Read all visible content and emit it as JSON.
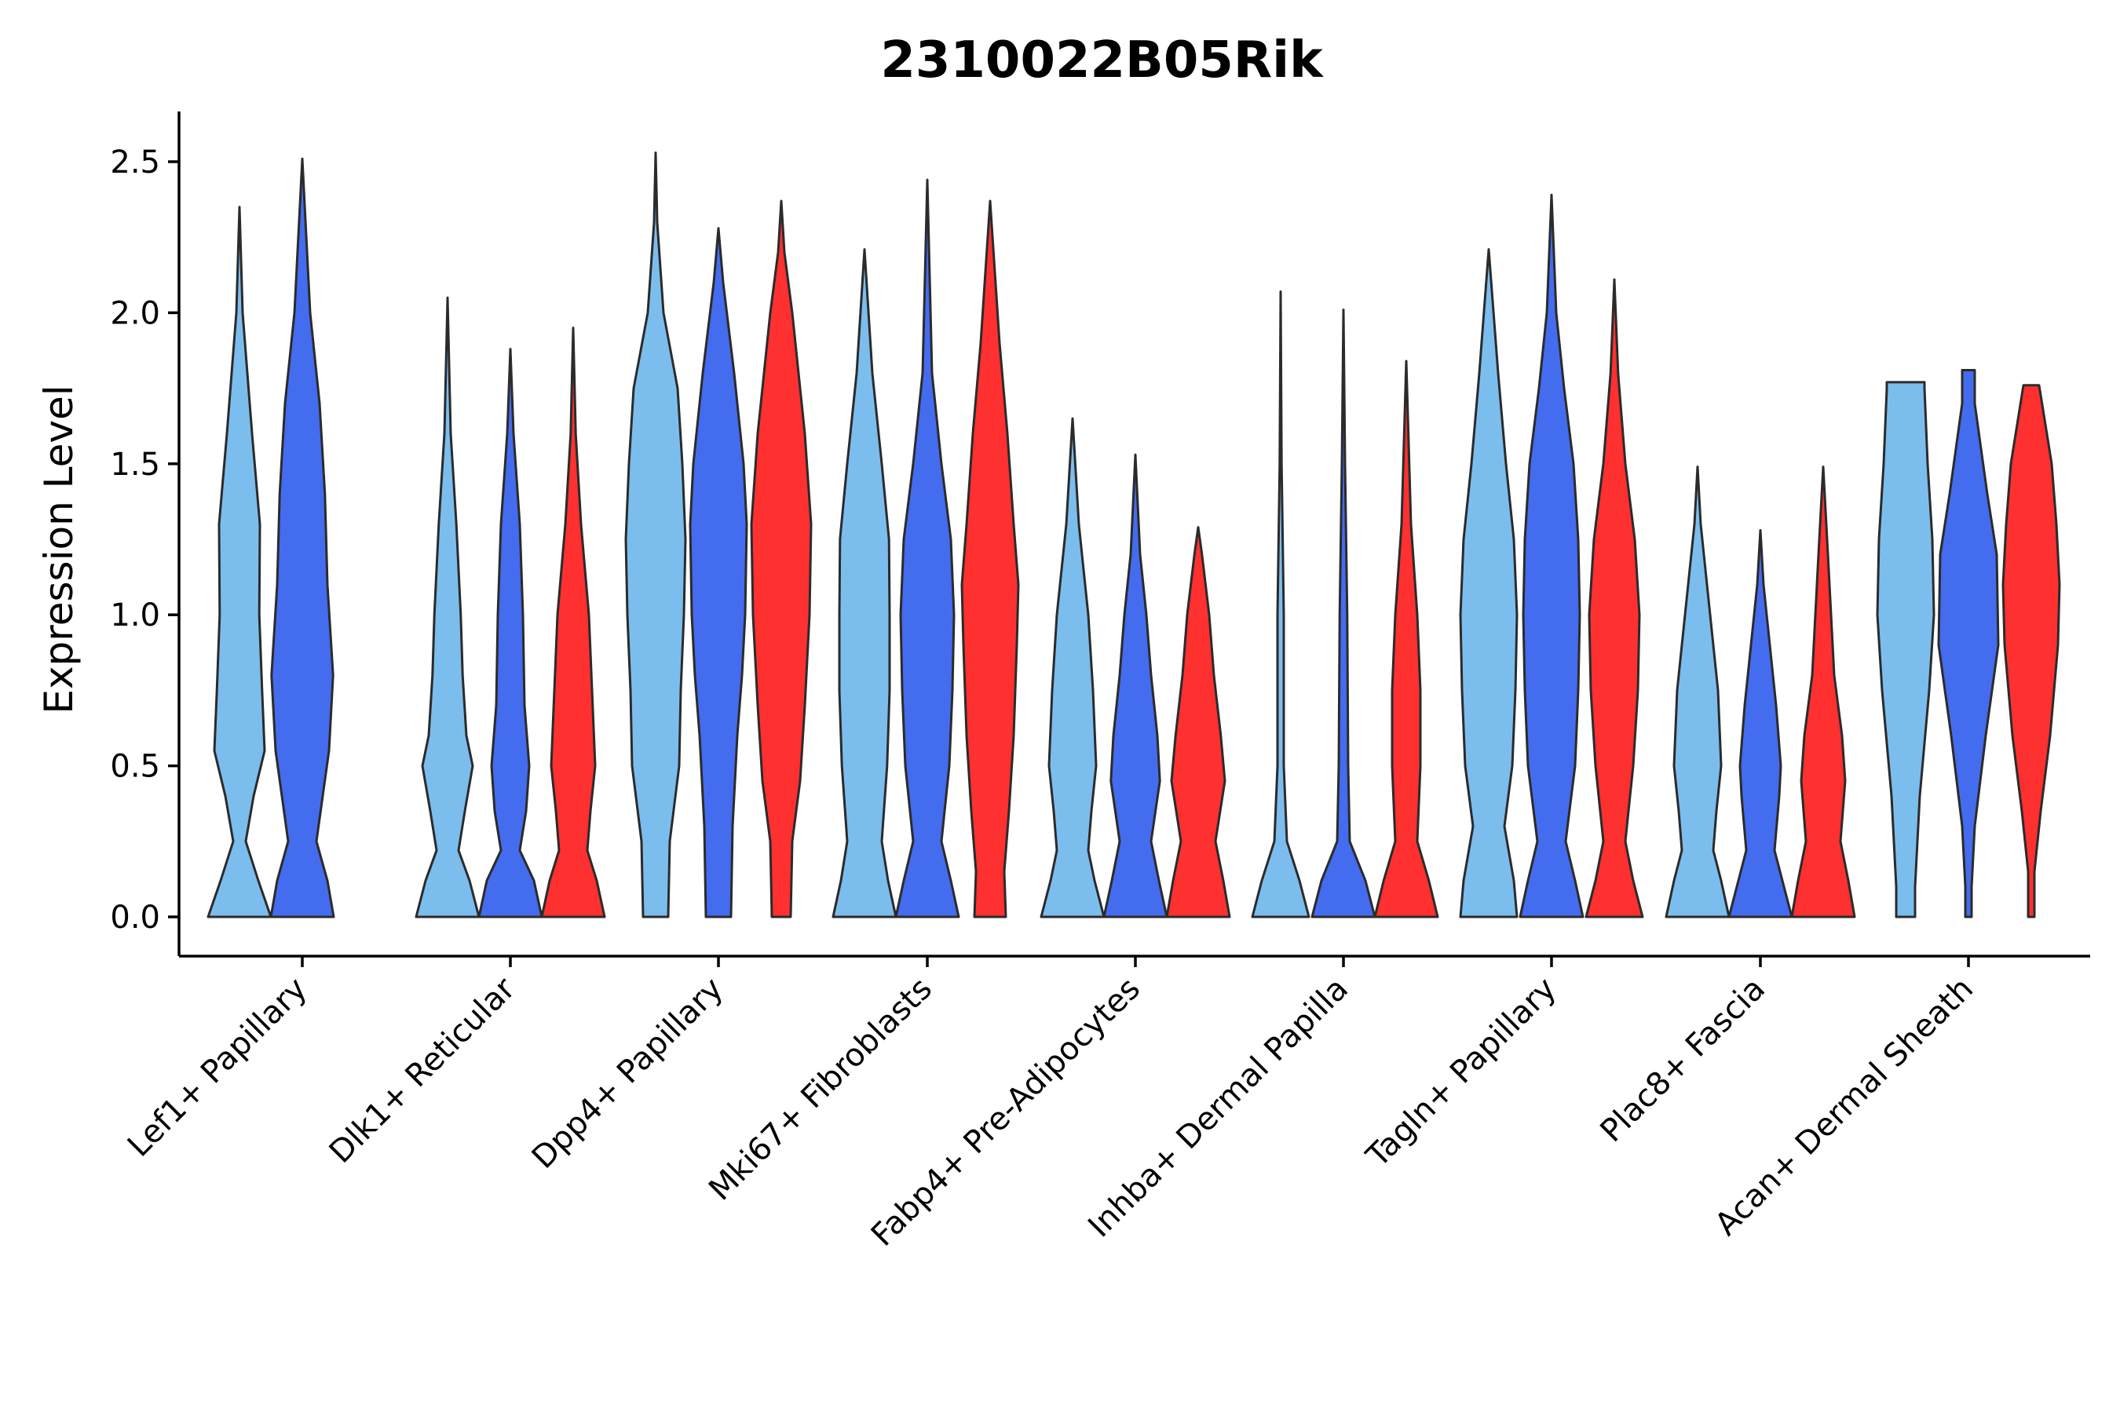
{
  "chart_data": {
    "type": "violin",
    "title": "2310022B05Rik",
    "xlabel": "",
    "ylabel": "Expression Level",
    "ylim": [
      -0.13,
      2.66
    ],
    "yticks": [
      0.0,
      0.5,
      1.0,
      1.5,
      2.0,
      2.5
    ],
    "ytick_labels": [
      "0.0",
      "0.5",
      "1.0",
      "1.5",
      "2.0",
      "2.5"
    ],
    "grid": false,
    "legend": "none",
    "categories": [
      "Lef1+ Papillary",
      "Dlk1+ Reticular",
      "Dpp4+ Papillary",
      "Mki67+ Fibroblasts",
      "Fabp4+ Pre-Adipocytes",
      "Inhba+ Dermal Papilla",
      "Tagln+ Papillary",
      "Plac8+ Fascia",
      "Acan+ Dermal Sheath"
    ],
    "series": [
      {
        "name": "light-blue",
        "color": "#7BBEEE",
        "max_values": [
          2.35,
          2.05,
          2.53,
          2.21,
          1.65,
          2.07,
          2.21,
          1.49,
          1.77
        ],
        "profiles": [
          [
            [
              0,
              1
            ],
            [
              0.12,
              0.6
            ],
            [
              0.25,
              0.2
            ],
            [
              0.4,
              0.45
            ],
            [
              0.55,
              0.8
            ],
            [
              0.75,
              0.72
            ],
            [
              1.0,
              0.63
            ],
            [
              1.3,
              0.65
            ],
            [
              1.6,
              0.4
            ],
            [
              2.0,
              0.1
            ],
            [
              2.35,
              0
            ]
          ],
          [
            [
              0,
              1
            ],
            [
              0.12,
              0.7
            ],
            [
              0.22,
              0.35
            ],
            [
              0.35,
              0.55
            ],
            [
              0.5,
              0.8
            ],
            [
              0.6,
              0.6
            ],
            [
              0.8,
              0.48
            ],
            [
              1.0,
              0.42
            ],
            [
              1.3,
              0.28
            ],
            [
              1.6,
              0.1
            ],
            [
              2.05,
              0
            ]
          ],
          [
            [
              0,
              0.4
            ],
            [
              0.25,
              0.45
            ],
            [
              0.5,
              0.75
            ],
            [
              0.75,
              0.8
            ],
            [
              1.0,
              0.9
            ],
            [
              1.25,
              0.95
            ],
            [
              1.5,
              0.85
            ],
            [
              1.75,
              0.7
            ],
            [
              2.0,
              0.25
            ],
            [
              2.3,
              0.05
            ],
            [
              2.53,
              0
            ]
          ],
          [
            [
              0,
              1
            ],
            [
              0.12,
              0.75
            ],
            [
              0.25,
              0.55
            ],
            [
              0.5,
              0.72
            ],
            [
              0.75,
              0.8
            ],
            [
              1.0,
              0.8
            ],
            [
              1.25,
              0.78
            ],
            [
              1.5,
              0.55
            ],
            [
              1.8,
              0.25
            ],
            [
              2.21,
              0
            ]
          ],
          [
            [
              0,
              1
            ],
            [
              0.12,
              0.7
            ],
            [
              0.22,
              0.5
            ],
            [
              0.35,
              0.6
            ],
            [
              0.5,
              0.75
            ],
            [
              0.75,
              0.65
            ],
            [
              1.0,
              0.5
            ],
            [
              1.3,
              0.2
            ],
            [
              1.65,
              0
            ]
          ],
          [
            [
              0,
              0.9
            ],
            [
              0.12,
              0.6
            ],
            [
              0.25,
              0.2
            ],
            [
              0.5,
              0.1
            ],
            [
              1.0,
              0.1
            ],
            [
              1.5,
              0.03
            ],
            [
              2.07,
              0
            ]
          ],
          [
            [
              0,
              0.9
            ],
            [
              0.12,
              0.8
            ],
            [
              0.3,
              0.5
            ],
            [
              0.5,
              0.75
            ],
            [
              0.75,
              0.85
            ],
            [
              1.0,
              0.9
            ],
            [
              1.25,
              0.8
            ],
            [
              1.5,
              0.55
            ],
            [
              1.8,
              0.3
            ],
            [
              2.21,
              0
            ]
          ],
          [
            [
              0,
              1
            ],
            [
              0.12,
              0.75
            ],
            [
              0.22,
              0.5
            ],
            [
              0.35,
              0.6
            ],
            [
              0.5,
              0.75
            ],
            [
              0.75,
              0.65
            ],
            [
              1.0,
              0.4
            ],
            [
              1.3,
              0.1
            ],
            [
              1.49,
              0
            ]
          ],
          [
            [
              0,
              0.3
            ],
            [
              0.1,
              0.3
            ],
            [
              0.4,
              0.45
            ],
            [
              0.75,
              0.75
            ],
            [
              1.0,
              0.9
            ],
            [
              1.25,
              0.85
            ],
            [
              1.5,
              0.7
            ],
            [
              1.75,
              0.6
            ],
            [
              1.77,
              0.6
            ]
          ]
        ]
      },
      {
        "name": "blue",
        "color": "#446CEE",
        "max_values": [
          2.51,
          1.88,
          2.28,
          2.44,
          1.53,
          2.01,
          2.39,
          1.28,
          1.81
        ],
        "profiles": [
          [
            [
              0,
              1
            ],
            [
              0.12,
              0.8
            ],
            [
              0.25,
              0.45
            ],
            [
              0.4,
              0.65
            ],
            [
              0.55,
              0.85
            ],
            [
              0.8,
              0.98
            ],
            [
              1.1,
              0.8
            ],
            [
              1.4,
              0.72
            ],
            [
              1.7,
              0.55
            ],
            [
              2.0,
              0.25
            ],
            [
              2.51,
              0
            ]
          ],
          [
            [
              0,
              1
            ],
            [
              0.12,
              0.75
            ],
            [
              0.22,
              0.3
            ],
            [
              0.35,
              0.5
            ],
            [
              0.5,
              0.6
            ],
            [
              0.7,
              0.45
            ],
            [
              1.0,
              0.4
            ],
            [
              1.3,
              0.3
            ],
            [
              1.6,
              0.1
            ],
            [
              1.88,
              0
            ]
          ],
          [
            [
              0,
              0.4
            ],
            [
              0.3,
              0.45
            ],
            [
              0.6,
              0.6
            ],
            [
              0.8,
              0.75
            ],
            [
              1.0,
              0.85
            ],
            [
              1.3,
              0.9
            ],
            [
              1.5,
              0.8
            ],
            [
              1.8,
              0.5
            ],
            [
              2.1,
              0.15
            ],
            [
              2.28,
              0
            ]
          ],
          [
            [
              0,
              1
            ],
            [
              0.12,
              0.75
            ],
            [
              0.25,
              0.45
            ],
            [
              0.5,
              0.7
            ],
            [
              0.75,
              0.8
            ],
            [
              1.0,
              0.85
            ],
            [
              1.25,
              0.75
            ],
            [
              1.5,
              0.45
            ],
            [
              1.8,
              0.15
            ],
            [
              2.44,
              0
            ]
          ],
          [
            [
              0,
              1
            ],
            [
              0.12,
              0.75
            ],
            [
              0.25,
              0.5
            ],
            [
              0.45,
              0.78
            ],
            [
              0.6,
              0.7
            ],
            [
              0.8,
              0.5
            ],
            [
              1.0,
              0.35
            ],
            [
              1.2,
              0.15
            ],
            [
              1.53,
              0
            ]
          ],
          [
            [
              0,
              1
            ],
            [
              0.12,
              0.7
            ],
            [
              0.25,
              0.2
            ],
            [
              0.5,
              0.15
            ],
            [
              1.0,
              0.12
            ],
            [
              1.5,
              0.05
            ],
            [
              2.01,
              0
            ]
          ],
          [
            [
              0,
              1
            ],
            [
              0.12,
              0.75
            ],
            [
              0.25,
              0.45
            ],
            [
              0.5,
              0.75
            ],
            [
              0.75,
              0.85
            ],
            [
              1.0,
              0.9
            ],
            [
              1.25,
              0.85
            ],
            [
              1.5,
              0.7
            ],
            [
              1.75,
              0.4
            ],
            [
              2.0,
              0.15
            ],
            [
              2.39,
              0
            ]
          ],
          [
            [
              0,
              1
            ],
            [
              0.12,
              0.7
            ],
            [
              0.22,
              0.45
            ],
            [
              0.4,
              0.6
            ],
            [
              0.5,
              0.65
            ],
            [
              0.7,
              0.5
            ],
            [
              0.9,
              0.3
            ],
            [
              1.1,
              0.1
            ],
            [
              1.28,
              0
            ]
          ],
          [
            [
              0,
              0.1
            ],
            [
              0.1,
              0.1
            ],
            [
              0.3,
              0.2
            ],
            [
              0.6,
              0.55
            ],
            [
              0.9,
              0.95
            ],
            [
              1.2,
              0.9
            ],
            [
              1.4,
              0.6
            ],
            [
              1.7,
              0.2
            ],
            [
              1.81,
              0.2
            ]
          ]
        ]
      },
      {
        "name": "red",
        "color": "#FF3030",
        "max_values": [
          null,
          1.95,
          2.37,
          2.37,
          1.29,
          1.84,
          2.11,
          1.49,
          1.76
        ],
        "profiles": [
          null,
          [
            [
              0,
              1
            ],
            [
              0.12,
              0.75
            ],
            [
              0.22,
              0.45
            ],
            [
              0.35,
              0.55
            ],
            [
              0.5,
              0.7
            ],
            [
              0.75,
              0.6
            ],
            [
              1.0,
              0.5
            ],
            [
              1.3,
              0.25
            ],
            [
              1.6,
              0.08
            ],
            [
              1.95,
              0
            ]
          ],
          [
            [
              0,
              0.3
            ],
            [
              0.25,
              0.35
            ],
            [
              0.45,
              0.6
            ],
            [
              0.7,
              0.75
            ],
            [
              1.0,
              0.9
            ],
            [
              1.3,
              0.95
            ],
            [
              1.6,
              0.75
            ],
            [
              2.0,
              0.35
            ],
            [
              2.2,
              0.1
            ],
            [
              2.37,
              0
            ]
          ],
          [
            [
              0,
              0.5
            ],
            [
              0.15,
              0.45
            ],
            [
              0.35,
              0.6
            ],
            [
              0.6,
              0.75
            ],
            [
              0.9,
              0.85
            ],
            [
              1.1,
              0.9
            ],
            [
              1.3,
              0.75
            ],
            [
              1.6,
              0.55
            ],
            [
              1.9,
              0.3
            ],
            [
              2.37,
              0
            ]
          ],
          [
            [
              0,
              1
            ],
            [
              0.12,
              0.8
            ],
            [
              0.25,
              0.55
            ],
            [
              0.45,
              0.85
            ],
            [
              0.6,
              0.72
            ],
            [
              0.8,
              0.5
            ],
            [
              1.0,
              0.35
            ],
            [
              1.2,
              0.12
            ],
            [
              1.29,
              0
            ]
          ],
          [
            [
              0,
              1
            ],
            [
              0.12,
              0.72
            ],
            [
              0.25,
              0.35
            ],
            [
              0.5,
              0.45
            ],
            [
              0.75,
              0.45
            ],
            [
              1.0,
              0.35
            ],
            [
              1.3,
              0.15
            ],
            [
              1.84,
              0
            ]
          ],
          [
            [
              0,
              0.9
            ],
            [
              0.12,
              0.6
            ],
            [
              0.25,
              0.35
            ],
            [
              0.5,
              0.6
            ],
            [
              0.75,
              0.75
            ],
            [
              1.0,
              0.8
            ],
            [
              1.25,
              0.65
            ],
            [
              1.5,
              0.35
            ],
            [
              1.8,
              0.12
            ],
            [
              2.11,
              0
            ]
          ],
          [
            [
              0,
              1
            ],
            [
              0.12,
              0.8
            ],
            [
              0.25,
              0.55
            ],
            [
              0.45,
              0.7
            ],
            [
              0.6,
              0.6
            ],
            [
              0.8,
              0.35
            ],
            [
              1.0,
              0.25
            ],
            [
              1.2,
              0.15
            ],
            [
              1.49,
              0
            ]
          ],
          [
            [
              0,
              0.1
            ],
            [
              0.15,
              0.1
            ],
            [
              0.35,
              0.3
            ],
            [
              0.6,
              0.6
            ],
            [
              0.9,
              0.85
            ],
            [
              1.1,
              0.9
            ],
            [
              1.3,
              0.8
            ],
            [
              1.5,
              0.65
            ],
            [
              1.76,
              0.25
            ]
          ]
        ]
      }
    ]
  }
}
